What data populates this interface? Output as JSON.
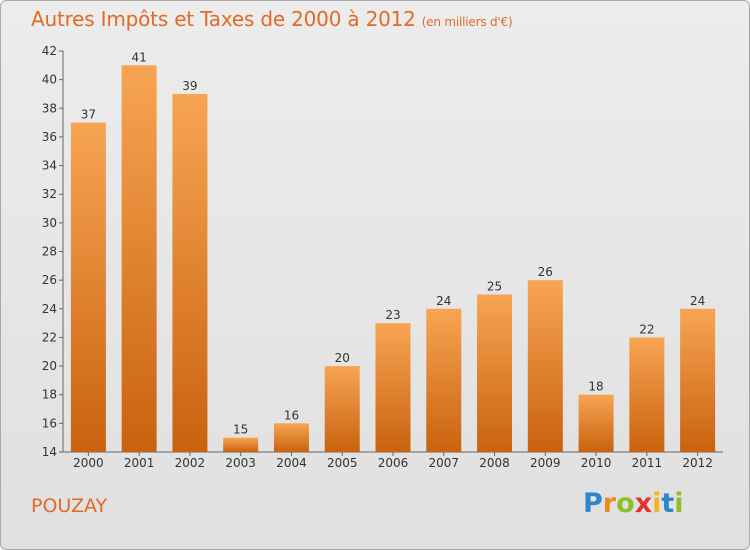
{
  "header": {
    "title": "Autres Impôts et Taxes de 2000 à 2012",
    "unit": "(en milliers d'€)"
  },
  "footer": {
    "commune": "POUZAY",
    "logo_letters": [
      {
        "ch": "P",
        "color": "#2c86c9"
      },
      {
        "ch": "r",
        "color": "#f18a1e"
      },
      {
        "ch": "o",
        "color": "#8cbf2a"
      },
      {
        "ch": "x",
        "color": "#e6332a"
      },
      {
        "ch": "i",
        "color": "#f3b51b"
      },
      {
        "ch": "t",
        "color": "#2c86c9"
      },
      {
        "ch": "i",
        "color": "#8cbf2a"
      }
    ]
  },
  "colors": {
    "accent": "#e06b26",
    "bar_top": "#f7a553",
    "bar_bottom": "#c9620f"
  },
  "chart_data": {
    "type": "bar",
    "categories": [
      "2000",
      "2001",
      "2002",
      "2003",
      "2004",
      "2005",
      "2006",
      "2007",
      "2008",
      "2009",
      "2010",
      "2011",
      "2012"
    ],
    "values": [
      37,
      41,
      39,
      15,
      16,
      20,
      23,
      24,
      25,
      26,
      18,
      22,
      24
    ],
    "title": "Autres Impôts et Taxes de 2000 à 2012",
    "ylim": [
      14,
      42
    ],
    "yticks": [
      14,
      16,
      18,
      20,
      22,
      24,
      26,
      28,
      30,
      32,
      34,
      36,
      38,
      40,
      42
    ],
    "grid": false,
    "data_labels": true
  }
}
